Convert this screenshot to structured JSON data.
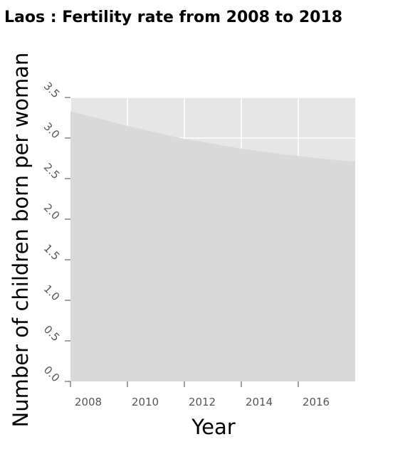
{
  "chart_data": {
    "type": "area",
    "title": "Laos : Fertility rate from 2008 to 2018",
    "xlabel": "Year",
    "ylabel": "Number of children born per woman",
    "x": [
      2008,
      2009,
      2010,
      2011,
      2012,
      2013,
      2014,
      2015,
      2016,
      2017,
      2018
    ],
    "series": [
      {
        "values": [
          3.33,
          3.24,
          3.15,
          3.07,
          2.99,
          2.93,
          2.87,
          2.82,
          2.78,
          2.74,
          2.71
        ]
      }
    ],
    "xlim": [
      2008,
      2018
    ],
    "ylim": [
      0,
      3.5
    ],
    "x_ticks": [
      "2008",
      "2010",
      "2012",
      "2014",
      "2016"
    ],
    "y_ticks": [
      "0.0",
      "0.5",
      "1.0",
      "1.5",
      "2.0",
      "2.5",
      "3.0",
      "3.5"
    ],
    "grid": true,
    "colors": {
      "area": "#d9d9d9",
      "background": "#e6e6e6",
      "grid": "#ffffff"
    }
  }
}
